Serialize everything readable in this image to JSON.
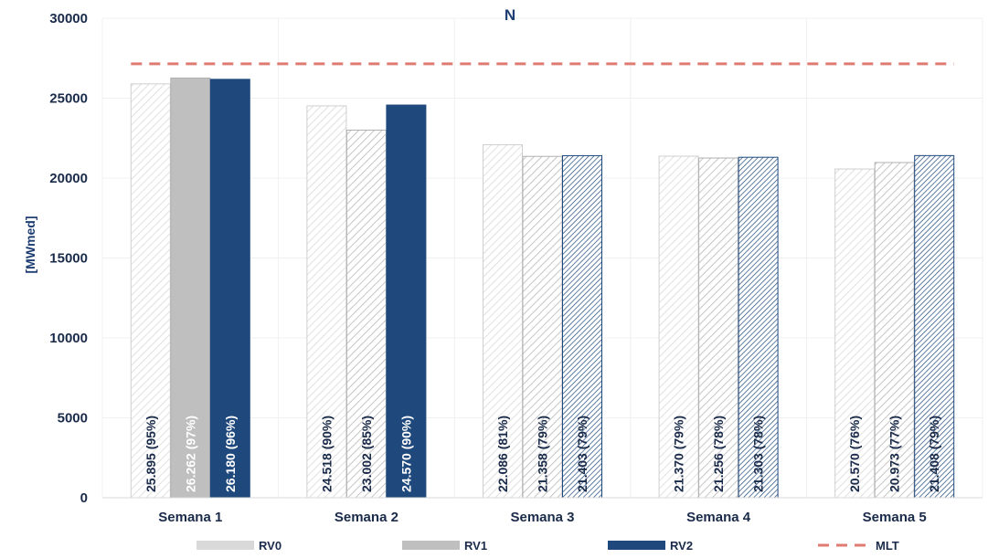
{
  "chart_data": {
    "type": "bar",
    "title": "N",
    "xlabel": "",
    "ylabel": "[MWmed]",
    "ylim": [
      0,
      30000
    ],
    "yticks": [
      "0",
      "5000",
      "10000",
      "15000",
      "20000",
      "25000",
      "30000"
    ],
    "grid": true,
    "legend_position": "bottom",
    "categories": [
      "Semana 1",
      "Semana 2",
      "Semana 3",
      "Semana 4",
      "Semana 5"
    ],
    "series": [
      {
        "name": "RV0",
        "values": [
          25895,
          24518,
          22086,
          21370,
          20570
        ],
        "labels": [
          "25.895 (95%)",
          "24.518 (90%)",
          "22.086 (81%)",
          "21.370 (79%)",
          "20.570 (76%)"
        ],
        "color": "#d9d9d9",
        "styles": [
          "hatch",
          "hatch",
          "hatch",
          "hatch",
          "hatch"
        ]
      },
      {
        "name": "RV1",
        "values": [
          26262,
          23002,
          21358,
          21256,
          20973
        ],
        "labels": [
          "26.262 (97%)",
          "23.002 (85%)",
          "21.358 (79%)",
          "21.256 (78%)",
          "20.973 (77%)"
        ],
        "color": "#bfbfbf",
        "styles": [
          "solid",
          "hatch",
          "hatch",
          "hatch",
          "hatch"
        ]
      },
      {
        "name": "RV2",
        "values": [
          26180,
          24570,
          21403,
          21303,
          21408
        ],
        "labels": [
          "26.180 (96%)",
          "24.570 (90%)",
          "21.403 (79%)",
          "21.303 (78%)",
          "21.408 (79%)"
        ],
        "color": "#1f497d",
        "styles": [
          "solid",
          "solid",
          "hatch-dark",
          "hatch-dark",
          "hatch-dark"
        ]
      }
    ],
    "reference_line": {
      "name": "MLT",
      "value": 27150,
      "color": "#e07b73",
      "style": "dashed"
    }
  }
}
